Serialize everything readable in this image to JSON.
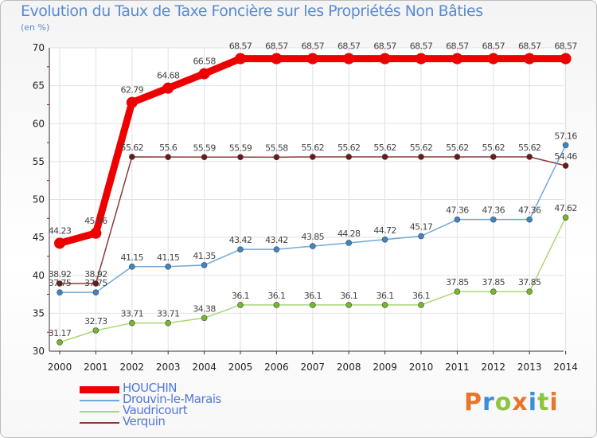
{
  "header": {
    "title": "Evolution du Taux de Taxe Foncière sur les Propriétés Non Bâties",
    "unit": "(en %)"
  },
  "brand": {
    "text": "Proxiti",
    "colors": [
      "#e8762a",
      "#3c8fd6",
      "#8cc63e",
      "#e8762a",
      "#3c8fd6",
      "#8cc63e",
      "#e8762a"
    ]
  },
  "chart_data": {
    "type": "line",
    "title": "Evolution du Taux de Taxe Foncière sur les Propriétés Non Bâties",
    "ylabel": "(en %)",
    "xlabel": "",
    "ylim": [
      30,
      70
    ],
    "yticks": [
      30,
      35,
      40,
      45,
      50,
      55,
      60,
      65,
      70
    ],
    "grid": true,
    "legend_position": "bottom-left",
    "x": [
      "2000",
      "2001",
      "2002",
      "2003",
      "2004",
      "2005",
      "2006",
      "2007",
      "2008",
      "2009",
      "2010",
      "2011",
      "2012",
      "2013",
      "2014"
    ],
    "series": [
      {
        "name": "HOUCHIN",
        "color": "#ee0000",
        "marker": "#ee0000",
        "emphasis": true,
        "values": [
          44.23,
          45.56,
          62.79,
          64.68,
          66.58,
          68.57,
          68.57,
          68.57,
          68.57,
          68.57,
          68.57,
          68.57,
          68.57,
          68.57,
          68.57
        ],
        "labels": [
          "44.23",
          "45.56",
          "62.79",
          "64.68",
          "66.58",
          "68.57",
          "68.57",
          "68.57",
          "68.57",
          "68.57",
          "68.57",
          "68.57",
          "68.57",
          "68.57",
          "68.57"
        ]
      },
      {
        "name": "Drouvin-le-Marais",
        "color": "#6fa8dc",
        "marker": "#3d85c6",
        "values": [
          37.75,
          37.75,
          41.15,
          41.15,
          41.35,
          43.42,
          43.42,
          43.85,
          44.28,
          44.72,
          45.17,
          47.36,
          47.36,
          47.36,
          57.16
        ],
        "labels": [
          "37.75",
          "37.75",
          "41.15",
          "41.15",
          "41.35",
          "43.42",
          "43.42",
          "43.85",
          "44.28",
          "44.72",
          "45.17",
          "47.36",
          "47.36",
          "47.36",
          "57.16"
        ]
      },
      {
        "name": "Vaudricourt",
        "color": "#a8d878",
        "marker": "#76b82a",
        "values": [
          31.17,
          32.73,
          33.71,
          33.71,
          34.38,
          36.1,
          36.1,
          36.1,
          36.1,
          36.1,
          36.1,
          37.85,
          37.85,
          37.85,
          47.62
        ],
        "labels": [
          "31.17",
          "32.73",
          "33.71",
          "33.71",
          "34.38",
          "36.1",
          "36.1",
          "36.1",
          "36.1",
          "36.1",
          "36.1",
          "37.85",
          "37.85",
          "37.85",
          "47.62"
        ]
      },
      {
        "name": "Verquin",
        "color": "#8b3a3a",
        "marker": "#6b1a1a",
        "values": [
          38.92,
          38.92,
          55.62,
          55.6,
          55.59,
          55.59,
          55.58,
          55.62,
          55.62,
          55.62,
          55.62,
          55.62,
          55.62,
          55.62,
          54.46
        ],
        "labels": [
          "38.92",
          "38.92",
          "55.62",
          "55.6",
          "55.59",
          "55.59",
          "55.58",
          "55.62",
          "55.62",
          "55.62",
          "55.62",
          "55.62",
          "55.62",
          "55.62",
          "54.46"
        ]
      }
    ]
  }
}
